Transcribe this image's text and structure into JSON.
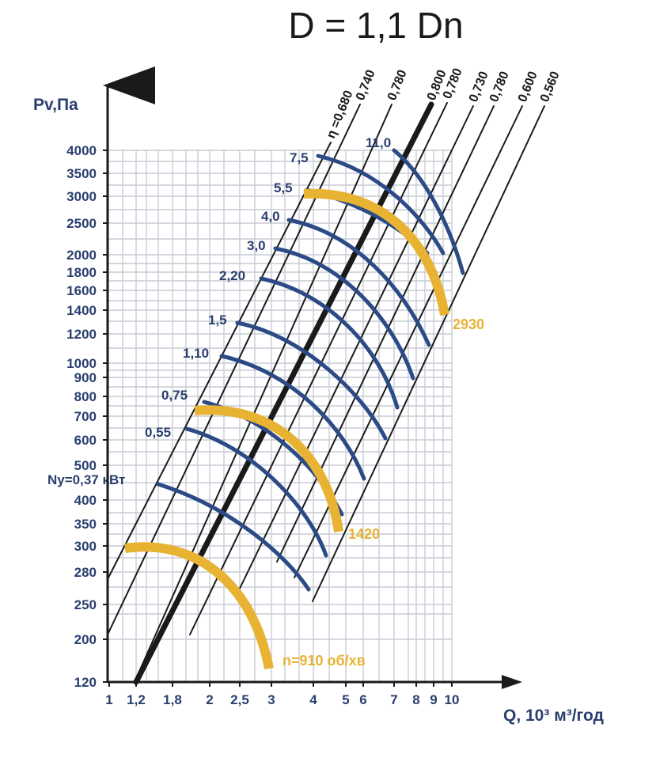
{
  "title": "D = 1,1 Dn",
  "chart_data": {
    "type": "line",
    "title": "D = 1,1 Dn",
    "xlabel": "Q, 10³ м³/год",
    "ylabel": "Pv,Па",
    "x_ticks": [
      "1",
      "1,2",
      "1,8",
      "2",
      "2,5",
      "3",
      "4",
      "5",
      "6",
      "7",
      "8",
      "9",
      "10"
    ],
    "y_ticks": [
      "120",
      "200",
      "250",
      "280",
      "300",
      "350",
      "400",
      "500",
      "600",
      "700",
      "800",
      "900",
      "1000",
      "1200",
      "1400",
      "1600",
      "1800",
      "2000",
      "2500",
      "3000",
      "3500",
      "4000"
    ],
    "efficiency_prefix": "η =",
    "efficiency_lines": [
      "0,680",
      "0,740",
      "0,780",
      "0,800",
      "0,780",
      "0,730",
      "0,780",
      "0,600",
      "0,560"
    ],
    "power_curves": [
      {
        "label": "Ny=0,37 кВт"
      },
      {
        "label": "0,55"
      },
      {
        "label": "0,75"
      },
      {
        "label": "1,10"
      },
      {
        "label": "1,5"
      },
      {
        "label": "2,20"
      },
      {
        "label": "3,0"
      },
      {
        "label": "4,0"
      },
      {
        "label": "5,5"
      },
      {
        "label": "7,5"
      },
      {
        "label": "11,0"
      }
    ],
    "speed_curves": [
      {
        "label": "n=910 об/хв"
      },
      {
        "label": "1420"
      },
      {
        "label": "2930"
      }
    ],
    "colors": {
      "power": "#2b4a86",
      "speed": "#e8b233",
      "grid": "#c9ccd6",
      "axis": "#1a1a1a",
      "label": "#2a3f6e"
    },
    "grid": true
  }
}
